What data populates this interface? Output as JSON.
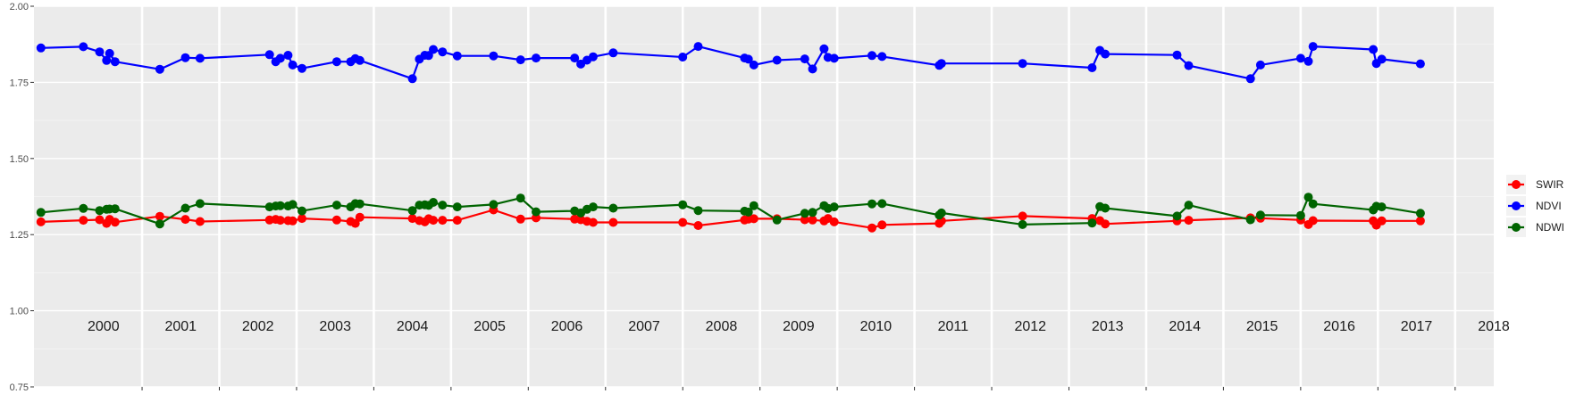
{
  "chart_data": {
    "type": "line",
    "title": "",
    "xlabel": "",
    "ylabel": "",
    "xlim": [
      1999.6,
      2018.5
    ],
    "ylim": [
      0.75,
      2.0
    ],
    "y_ticks": [
      0.75,
      1.0,
      1.25,
      1.5,
      1.75,
      2.0
    ],
    "y_tick_labels": [
      "0.75",
      "1.00",
      "1.25",
      "1.50",
      "1.75",
      "2.00"
    ],
    "year_bands": [
      "2000",
      "2001",
      "2002",
      "2003",
      "2004",
      "2005",
      "2006",
      "2007",
      "2008",
      "2009",
      "2010",
      "2011",
      "2012",
      "2013",
      "2014",
      "2015",
      "2016",
      "2017",
      "2018"
    ],
    "grid": true,
    "legend_position": "right",
    "background": "#ebebeb",
    "series": [
      {
        "name": "SWIR",
        "color": "#ff0000",
        "x": [
          1999.69,
          2000.24,
          2000.45,
          2000.54,
          2000.58,
          2000.65,
          2001.23,
          2001.56,
          2001.75,
          2002.65,
          2002.73,
          2002.79,
          2002.89,
          2002.95,
          2003.07,
          2003.52,
          2003.7,
          2003.76,
          2003.82,
          2004.5,
          2004.59,
          2004.66,
          2004.71,
          2004.77,
          2004.89,
          2005.08,
          2005.55,
          2005.9,
          2006.1,
          2006.6,
          2006.68,
          2006.76,
          2006.84,
          2007.1,
          2008.0,
          2008.2,
          2008.8,
          2008.85,
          2008.92,
          2009.22,
          2009.58,
          2009.68,
          2009.83,
          2009.88,
          2009.96,
          2010.45,
          2010.58,
          2011.32,
          2011.35,
          2012.4,
          2013.3,
          2013.4,
          2013.47,
          2014.4,
          2014.55,
          2015.35,
          2015.48,
          2016.0,
          2016.1,
          2016.16,
          2016.94,
          2016.98,
          2017.05,
          2017.55
        ],
        "y": [
          1.292,
          1.297,
          1.299,
          1.287,
          1.3,
          1.291,
          1.31,
          1.3,
          1.293,
          1.298,
          1.3,
          1.297,
          1.296,
          1.295,
          1.303,
          1.298,
          1.293,
          1.287,
          1.307,
          1.303,
          1.296,
          1.292,
          1.302,
          1.297,
          1.297,
          1.297,
          1.331,
          1.301,
          1.305,
          1.301,
          1.299,
          1.294,
          1.29,
          1.29,
          1.29,
          1.28,
          1.298,
          1.301,
          1.302,
          1.302,
          1.299,
          1.298,
          1.295,
          1.303,
          1.292,
          1.272,
          1.282,
          1.287,
          1.295,
          1.311,
          1.303,
          1.296,
          1.285,
          1.295,
          1.297,
          1.305,
          1.304,
          1.298,
          1.283,
          1.296,
          1.295,
          1.281,
          1.295,
          1.295
        ]
      },
      {
        "name": "NDVI",
        "color": "#0000ff",
        "x": [
          1999.69,
          2000.24,
          2000.45,
          2000.54,
          2000.58,
          2000.65,
          2001.23,
          2001.56,
          2001.75,
          2002.65,
          2002.73,
          2002.79,
          2002.89,
          2002.95,
          2003.07,
          2003.52,
          2003.7,
          2003.76,
          2003.82,
          2004.5,
          2004.59,
          2004.66,
          2004.71,
          2004.77,
          2004.89,
          2005.08,
          2005.55,
          2005.9,
          2006.1,
          2006.6,
          2006.68,
          2006.76,
          2006.84,
          2007.1,
          2008.0,
          2008.2,
          2008.8,
          2008.85,
          2008.92,
          2009.22,
          2009.58,
          2009.68,
          2009.83,
          2009.88,
          2009.96,
          2010.45,
          2010.58,
          2011.32,
          2011.35,
          2012.4,
          2013.3,
          2013.4,
          2013.47,
          2014.4,
          2014.55,
          2015.35,
          2015.48,
          2016.0,
          2016.1,
          2016.16,
          2016.94,
          2016.98,
          2017.05,
          2017.55
        ],
        "y": [
          1.863,
          1.867,
          1.85,
          1.822,
          1.845,
          1.818,
          1.793,
          1.831,
          1.829,
          1.841,
          1.818,
          1.829,
          1.839,
          1.807,
          1.796,
          1.818,
          1.818,
          1.828,
          1.822,
          1.762,
          1.826,
          1.839,
          1.838,
          1.858,
          1.85,
          1.837,
          1.837,
          1.824,
          1.83,
          1.83,
          1.81,
          1.823,
          1.834,
          1.847,
          1.833,
          1.868,
          1.83,
          1.826,
          1.807,
          1.823,
          1.827,
          1.794,
          1.86,
          1.832,
          1.829,
          1.838,
          1.835,
          1.806,
          1.812,
          1.812,
          1.798,
          1.855,
          1.843,
          1.84,
          1.805,
          1.762,
          1.807,
          1.829,
          1.819,
          1.868,
          1.858,
          1.812,
          1.826,
          1.811
        ]
      },
      {
        "name": "NDWI",
        "color": "#006400",
        "x": [
          1999.69,
          2000.24,
          2000.45,
          2000.54,
          2000.58,
          2000.65,
          2001.23,
          2001.56,
          2001.75,
          2002.65,
          2002.73,
          2002.79,
          2002.89,
          2002.95,
          2003.07,
          2003.52,
          2003.7,
          2003.76,
          2003.82,
          2004.5,
          2004.59,
          2004.66,
          2004.71,
          2004.77,
          2004.89,
          2005.08,
          2005.55,
          2005.9,
          2006.1,
          2006.6,
          2006.68,
          2006.76,
          2006.84,
          2007.1,
          2008.0,
          2008.2,
          2008.8,
          2008.85,
          2008.92,
          2009.22,
          2009.58,
          2009.68,
          2009.83,
          2009.88,
          2009.96,
          2010.45,
          2010.58,
          2011.32,
          2011.35,
          2012.4,
          2013.3,
          2013.4,
          2013.47,
          2014.4,
          2014.55,
          2015.35,
          2015.48,
          2016.0,
          2016.1,
          2016.16,
          2016.94,
          2016.98,
          2017.05,
          2017.55
        ],
        "y": [
          1.323,
          1.336,
          1.329,
          1.333,
          1.334,
          1.335,
          1.285,
          1.337,
          1.352,
          1.341,
          1.344,
          1.345,
          1.344,
          1.349,
          1.328,
          1.347,
          1.341,
          1.352,
          1.351,
          1.329,
          1.347,
          1.348,
          1.346,
          1.356,
          1.347,
          1.341,
          1.349,
          1.37,
          1.325,
          1.328,
          1.321,
          1.333,
          1.341,
          1.337,
          1.348,
          1.329,
          1.327,
          1.324,
          1.345,
          1.298,
          1.32,
          1.323,
          1.345,
          1.336,
          1.341,
          1.351,
          1.352,
          1.314,
          1.321,
          1.283,
          1.288,
          1.342,
          1.337,
          1.311,
          1.347,
          1.299,
          1.314,
          1.313,
          1.373,
          1.351,
          1.331,
          1.343,
          1.341,
          1.32
        ]
      }
    ]
  }
}
